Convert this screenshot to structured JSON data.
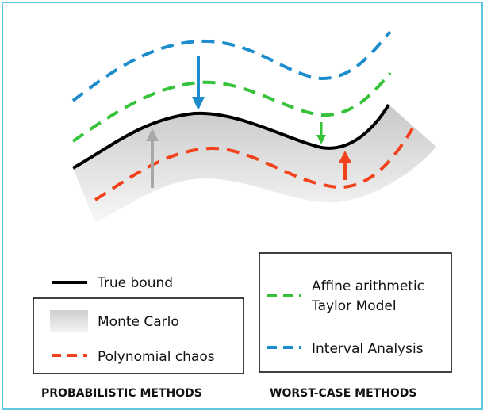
{
  "colors": {
    "frame": "#5ec8de",
    "true_bound": "#000000",
    "monte_carlo": "#d9d9d9",
    "polynomial_chaos": "#f2421c",
    "affine_taylor": "#36c33a",
    "interval_analysis": "#1c8ccc",
    "arrow_gray": "#a8a8a8"
  },
  "legend": {
    "true_bound": "True bound",
    "monte_carlo": "Monte Carlo",
    "polynomial_chaos": "Polynomial chaos",
    "affine_line1": "Affine arithmetic",
    "affine_line2": "Taylor Model",
    "interval_analysis": "Interval Analysis"
  },
  "captions": {
    "probabilistic": "PROBABILISTIC METHODS",
    "worst_case": "WORST-CASE METHODS"
  }
}
